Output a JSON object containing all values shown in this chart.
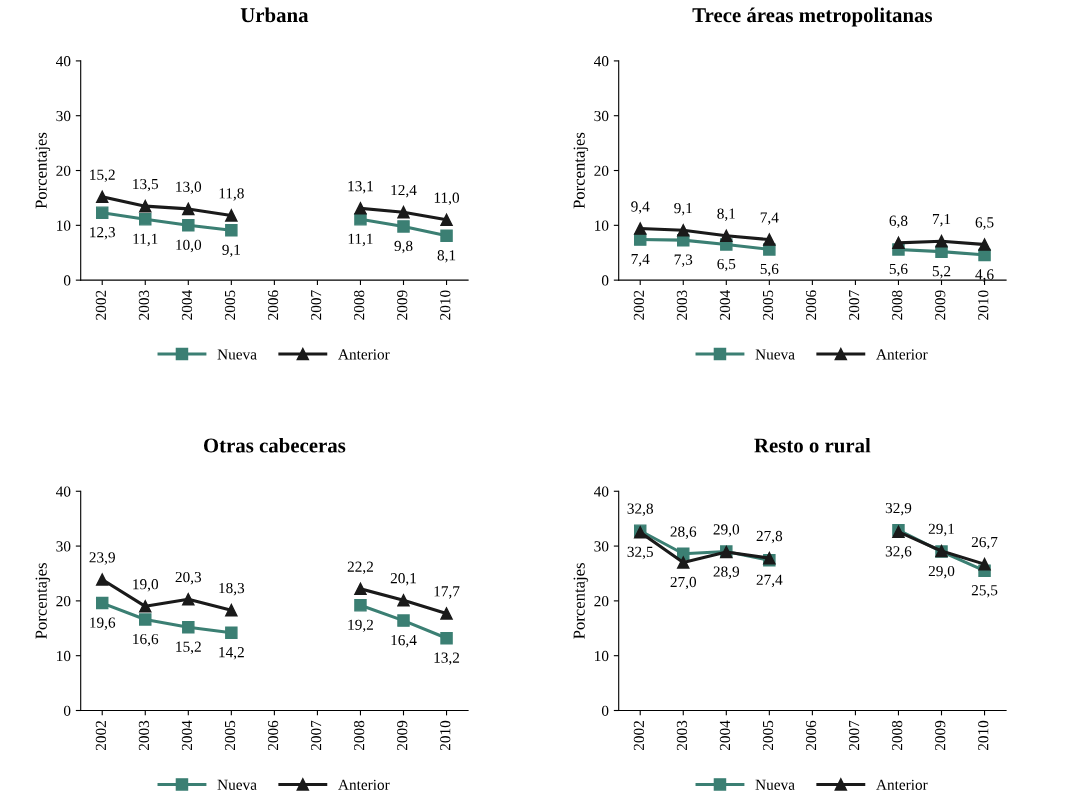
{
  "chart_data": [
    {
      "type": "line",
      "title": "Urbana",
      "ylabel": "Porcentajes",
      "categories": [
        "2002",
        "2003",
        "2004",
        "2005",
        "2006",
        "2007",
        "2008",
        "2009",
        "2010"
      ],
      "ylim": [
        0,
        40
      ],
      "yticks": [
        0,
        10,
        20,
        30,
        40
      ],
      "grid": false,
      "legend": "bottom",
      "series": [
        {
          "name": "Nueva",
          "color": "#3b7f73",
          "marker": "square",
          "values": [
            12.3,
            11.1,
            10.0,
            9.1,
            null,
            null,
            11.1,
            9.8,
            8.1
          ],
          "value_labels": [
            "12,3",
            "11,1",
            "10,0",
            "9,1",
            null,
            null,
            "11,1",
            "9,8",
            "8,1"
          ]
        },
        {
          "name": "Anterior",
          "color": "#1a1a1a",
          "marker": "triangle",
          "values": [
            15.2,
            13.5,
            13.0,
            11.8,
            null,
            null,
            13.1,
            12.4,
            11.0
          ],
          "value_labels": [
            "15,2",
            "13,5",
            "13,0",
            "11,8",
            null,
            null,
            "13,1",
            "12,4",
            "11,0"
          ]
        }
      ]
    },
    {
      "type": "line",
      "title": "Trece áreas metropolitanas",
      "ylabel": "Porcentajes",
      "categories": [
        "2002",
        "2003",
        "2004",
        "2005",
        "2006",
        "2007",
        "2008",
        "2009",
        "2010"
      ],
      "ylim": [
        0,
        40
      ],
      "yticks": [
        0,
        10,
        20,
        30,
        40
      ],
      "grid": false,
      "legend": "bottom",
      "series": [
        {
          "name": "Nueva",
          "color": "#3b7f73",
          "marker": "square",
          "values": [
            7.4,
            7.3,
            6.5,
            5.6,
            null,
            null,
            5.6,
            5.2,
            4.6
          ],
          "value_labels": [
            "7,4",
            "7,3",
            "6,5",
            "5,6",
            null,
            null,
            "5,6",
            "5,2",
            "4,6"
          ]
        },
        {
          "name": "Anterior",
          "color": "#1a1a1a",
          "marker": "triangle",
          "values": [
            9.4,
            9.1,
            8.1,
            7.4,
            null,
            null,
            6.8,
            7.1,
            6.5
          ],
          "value_labels": [
            "9,4",
            "9,1",
            "8,1",
            "7,4",
            null,
            null,
            "6,8",
            "7,1",
            "6,5"
          ]
        }
      ]
    },
    {
      "type": "line",
      "title": "Otras cabeceras",
      "ylabel": "Porcentajes",
      "categories": [
        "2002",
        "2003",
        "2004",
        "2005",
        "2006",
        "2007",
        "2008",
        "2009",
        "2010"
      ],
      "ylim": [
        0,
        40
      ],
      "yticks": [
        0,
        10,
        20,
        30,
        40
      ],
      "grid": false,
      "legend": "bottom",
      "series": [
        {
          "name": "Nueva",
          "color": "#3b7f73",
          "marker": "square",
          "values": [
            19.6,
            16.6,
            15.2,
            14.2,
            null,
            null,
            19.2,
            16.4,
            13.2
          ],
          "value_labels": [
            "19,6",
            "16,6",
            "15,2",
            "14,2",
            null,
            null,
            "19,2",
            "16,4",
            "13,2"
          ]
        },
        {
          "name": "Anterior",
          "color": "#1a1a1a",
          "marker": "triangle",
          "values": [
            23.9,
            19.0,
            20.3,
            18.3,
            null,
            null,
            22.2,
            20.1,
            17.7
          ],
          "value_labels": [
            "23,9",
            "19,0",
            "20,3",
            "18,3",
            null,
            null,
            "22,2",
            "20,1",
            "17,7"
          ]
        }
      ]
    },
    {
      "type": "line",
      "title": "Resto o rural",
      "ylabel": "Porcentajes",
      "categories": [
        "2002",
        "2003",
        "2004",
        "2005",
        "2006",
        "2007",
        "2008",
        "2009",
        "2010"
      ],
      "ylim": [
        0,
        40
      ],
      "yticks": [
        0,
        10,
        20,
        30,
        40
      ],
      "grid": false,
      "legend": "bottom",
      "series": [
        {
          "name": "Nueva",
          "color": "#3b7f73",
          "marker": "square",
          "values": [
            32.8,
            28.6,
            29.0,
            27.4,
            null,
            null,
            32.9,
            29.0,
            25.5
          ],
          "value_labels": [
            "32,8",
            "28,6",
            "29,0",
            "27,4",
            null,
            null,
            "32,9",
            "29,0",
            "25,5"
          ]
        },
        {
          "name": "Anterior",
          "color": "#1a1a1a",
          "marker": "triangle",
          "values": [
            32.5,
            27.0,
            28.9,
            27.8,
            null,
            null,
            32.6,
            29.1,
            26.7
          ],
          "value_labels": [
            "32,5",
            "27,0",
            "28,9",
            "27,8",
            null,
            null,
            "32,6",
            "29,1",
            "26,7"
          ]
        }
      ]
    }
  ]
}
